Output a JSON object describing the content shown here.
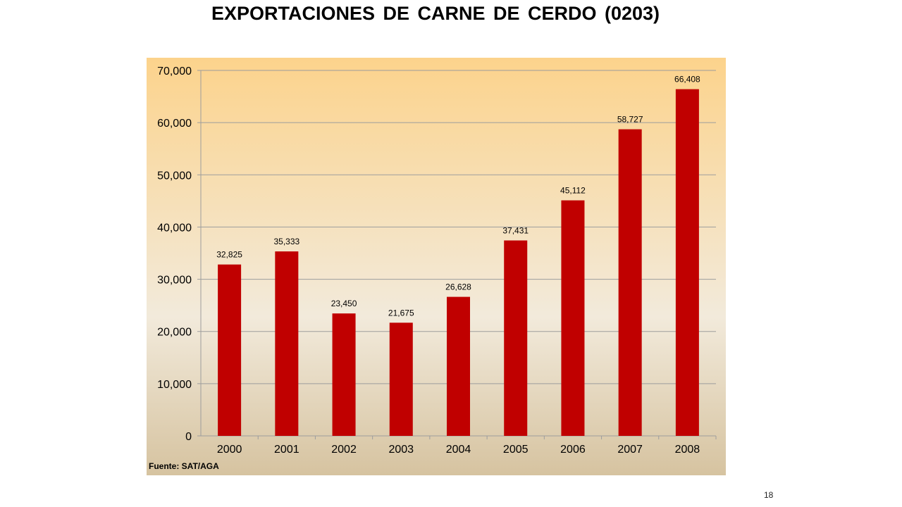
{
  "slide": {
    "title": "EXPORTACIONES  DE CARNE DE CERDO (0203)",
    "page_number": "18",
    "source_note": "Fuente: SAT/AGA"
  },
  "colors": {
    "bar": "#c00000",
    "gradient_top": "#fcd38c",
    "gradient_middle": "#f2eadb",
    "gradient_bottom": "#d6c3a0",
    "gridline": "#9d9d9d"
  },
  "chart_data": {
    "type": "bar",
    "title": "",
    "xlabel": "",
    "ylabel": "",
    "categories": [
      "2000",
      "2001",
      "2002",
      "2003",
      "2004",
      "2005",
      "2006",
      "2007",
      "2008"
    ],
    "values": [
      32825,
      35333,
      23450,
      21675,
      26628,
      37431,
      45112,
      58727,
      66408
    ],
    "value_labels": [
      "32,825",
      "35,333",
      "23,450",
      "21,675",
      "26,628",
      "37,431",
      "45,112",
      "58,727",
      "66,408"
    ],
    "ylim": [
      0,
      70000
    ],
    "yticks": [
      0,
      10000,
      20000,
      30000,
      40000,
      50000,
      60000,
      70000
    ],
    "ytick_labels": [
      "0",
      "10,000",
      "20,000",
      "30,000",
      "40,000",
      "50,000",
      "60,000",
      "70,000"
    ],
    "grid": true,
    "legend": "none"
  }
}
